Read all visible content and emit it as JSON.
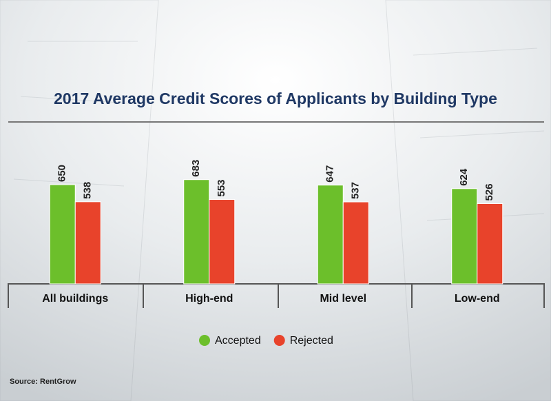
{
  "chart_data": {
    "type": "bar",
    "title": "2017 Average Credit Scores of Applicants by Building Type",
    "categories": [
      "All buildings",
      "High-end",
      "Mid level",
      "Low-end"
    ],
    "series": [
      {
        "name": "Accepted",
        "color": "#6cbf2b",
        "values": [
          650,
          683,
          647,
          624
        ]
      },
      {
        "name": "Rejected",
        "color": "#e8432b",
        "values": [
          538,
          553,
          537,
          526
        ]
      }
    ],
    "source": "Source: RentGrow"
  }
}
